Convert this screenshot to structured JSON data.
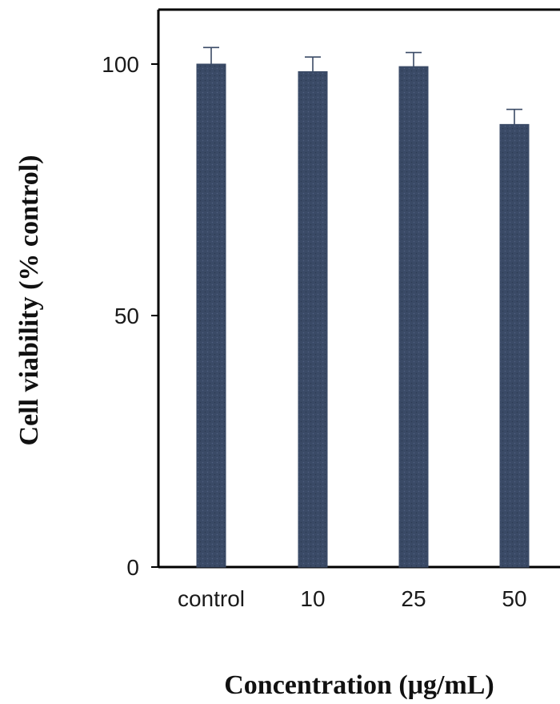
{
  "chart_data": {
    "type": "bar",
    "categories": [
      "control",
      "10",
      "25",
      "50"
    ],
    "values": [
      100,
      98.5,
      99.5,
      88
    ],
    "errors": [
      3.3,
      2.9,
      2.8,
      3.0
    ],
    "xlabel": "Concentration (μg/mL)",
    "ylabel": "Cell viability (% control)",
    "ylim": [
      0,
      100
    ],
    "yticks": [
      "0",
      "50",
      "100"
    ],
    "grid": false,
    "bar_color": "#3a4a66"
  }
}
